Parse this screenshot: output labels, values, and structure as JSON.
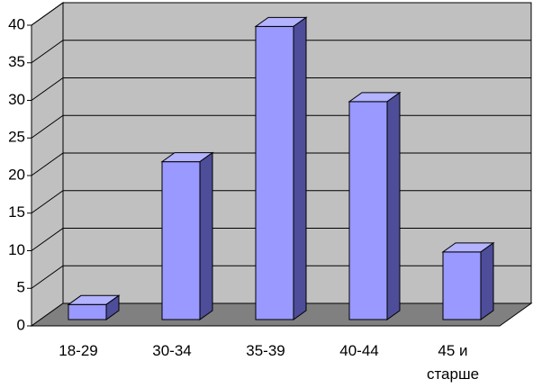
{
  "chart_data": {
    "type": "bar3d",
    "categories": [
      "18-29",
      "30-34",
      "35-39",
      "40-44",
      "45 и старше"
    ],
    "values": [
      2,
      21,
      39,
      29,
      9
    ],
    "color": "#9999ff",
    "ylim": [
      0,
      40
    ],
    "yticks": [
      0,
      5,
      10,
      15,
      20,
      25,
      30,
      35,
      40
    ],
    "grid": true
  }
}
